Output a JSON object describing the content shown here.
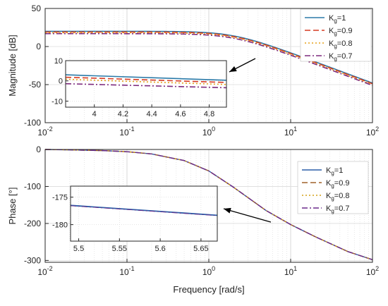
{
  "chart_data": [
    {
      "type": "line",
      "panel": "magnitude",
      "xscale": "log",
      "xlim": [
        0.01,
        100
      ],
      "ylim": [
        -100,
        50
      ],
      "xticks": [
        0.01,
        0.1,
        1,
        10,
        100
      ],
      "xtick_labels": [
        "10^-2",
        "10^-1",
        "10^0",
        "10^1",
        "10^2"
      ],
      "yticks": [
        -100,
        -50,
        0,
        50
      ],
      "ytick_labels": [
        "-100",
        "-50",
        "0",
        "50"
      ],
      "xlabel": "",
      "ylabel": "Magnitude [dB]",
      "grid": true,
      "legend_position": "top-right",
      "series": [
        {
          "name": "K_g=1",
          "legend_main": "K",
          "legend_sub": "g",
          "legend_tail": "=1",
          "color": "#2b7aa8",
          "dash": "solid",
          "dc_gain_db": 20.0,
          "corner_rad_s": 2.0,
          "rolloff_db_per_decade": -40
        },
        {
          "name": "K_g=0.9",
          "legend_main": "K",
          "legend_sub": "g",
          "legend_tail": "=0.9",
          "color": "#d63a22",
          "dash": "dashed",
          "dc_gain_db": 19.1,
          "corner_rad_s": 2.0,
          "rolloff_db_per_decade": -40
        },
        {
          "name": "K_g=0.8",
          "legend_main": "K",
          "legend_sub": "g",
          "legend_tail": "=0.8",
          "color": "#e6a11a",
          "dash": "dotted",
          "dc_gain_db": 18.1,
          "corner_rad_s": 2.0,
          "rolloff_db_per_decade": -40
        },
        {
          "name": "K_g=0.7",
          "legend_main": "K",
          "legend_sub": "g",
          "legend_tail": "=0.7",
          "color": "#7d2a7d",
          "dash": "dashdot",
          "dc_gain_db": 16.9,
          "corner_rad_s": 2.0,
          "rolloff_db_per_decade": -40
        }
      ],
      "inset": {
        "xlim": [
          3.8,
          4.92
        ],
        "ylim": [
          -13,
          10
        ],
        "xticks": [
          4,
          4.2,
          4.4,
          4.6,
          4.8
        ],
        "xtick_labels": [
          "4",
          "4.2",
          "4.4",
          "4.6",
          "4.8"
        ],
        "yticks": [
          -10,
          0,
          10
        ],
        "ytick_labels": [
          "-10",
          "0",
          "10"
        ],
        "series_values": [
          {
            "x": [
              3.8,
              4.92
            ],
            "y": [
              3.0,
              0.3
            ]
          },
          {
            "x": [
              3.8,
              4.92
            ],
            "y": [
              1.8,
              -0.8
            ]
          },
          {
            "x": [
              3.8,
              4.92
            ],
            "y": [
              0.8,
              -1.8
            ]
          },
          {
            "x": [
              3.8,
              4.92
            ],
            "y": [
              -1.4,
              -3.4
            ]
          }
        ]
      }
    },
    {
      "type": "line",
      "panel": "phase",
      "xscale": "log",
      "xlim": [
        0.01,
        100
      ],
      "ylim": [
        -305,
        0
      ],
      "xticks": [
        0.01,
        0.1,
        1,
        10,
        100
      ],
      "xtick_labels": [
        "10^-2",
        "10^-1",
        "10^0",
        "10^1",
        "10^2"
      ],
      "yticks": [
        -300,
        -200,
        -100,
        0
      ],
      "ytick_labels": [
        "-300",
        "-200",
        "-100",
        "0"
      ],
      "xlabel": "Frequency [rad/s]",
      "ylabel": "Phase [°]",
      "grid": true,
      "legend_position": "right",
      "series": [
        {
          "name": "K_g=1",
          "legend_main": "K",
          "legend_sub": "g",
          "legend_tail": "=1",
          "color": "#2b5fa8",
          "dash": "solid"
        },
        {
          "name": "K_g=0.9",
          "legend_main": "K",
          "legend_sub": "g",
          "legend_tail": "=0.9",
          "color": "#a0622a",
          "dash": "dashed"
        },
        {
          "name": "K_g=0.8",
          "legend_main": "K",
          "legend_sub": "g",
          "legend_tail": "=0.8",
          "color": "#d4a017",
          "dash": "dotted"
        },
        {
          "name": "K_g=0.7",
          "legend_main": "K",
          "legend_sub": "g",
          "legend_tail": "=0.7",
          "color": "#6a2a8a",
          "dash": "dashdot"
        }
      ],
      "curve": {
        "x": [
          0.01,
          0.02,
          0.05,
          0.1,
          0.2,
          0.5,
          1,
          2,
          5,
          10,
          20,
          50,
          100
        ],
        "y": [
          0,
          -1,
          -3,
          -6,
          -12,
          -30,
          -58,
          -102,
          -165,
          -203,
          -236,
          -276,
          -298
        ]
      },
      "inset": {
        "xlim": [
          5.49,
          5.67
        ],
        "ylim": [
          -183,
          -173
        ],
        "xticks": [
          5.5,
          5.55,
          5.6,
          5.65
        ],
        "xtick_labels": [
          "5.5",
          "5.55",
          "5.6",
          "5.65"
        ],
        "yticks": [
          -180,
          -175
        ],
        "ytick_labels": [
          "-180",
          "-175"
        ],
        "line": {
          "x": [
            5.49,
            5.67
          ],
          "y": [
            -176.5,
            -178.3
          ]
        }
      }
    }
  ]
}
